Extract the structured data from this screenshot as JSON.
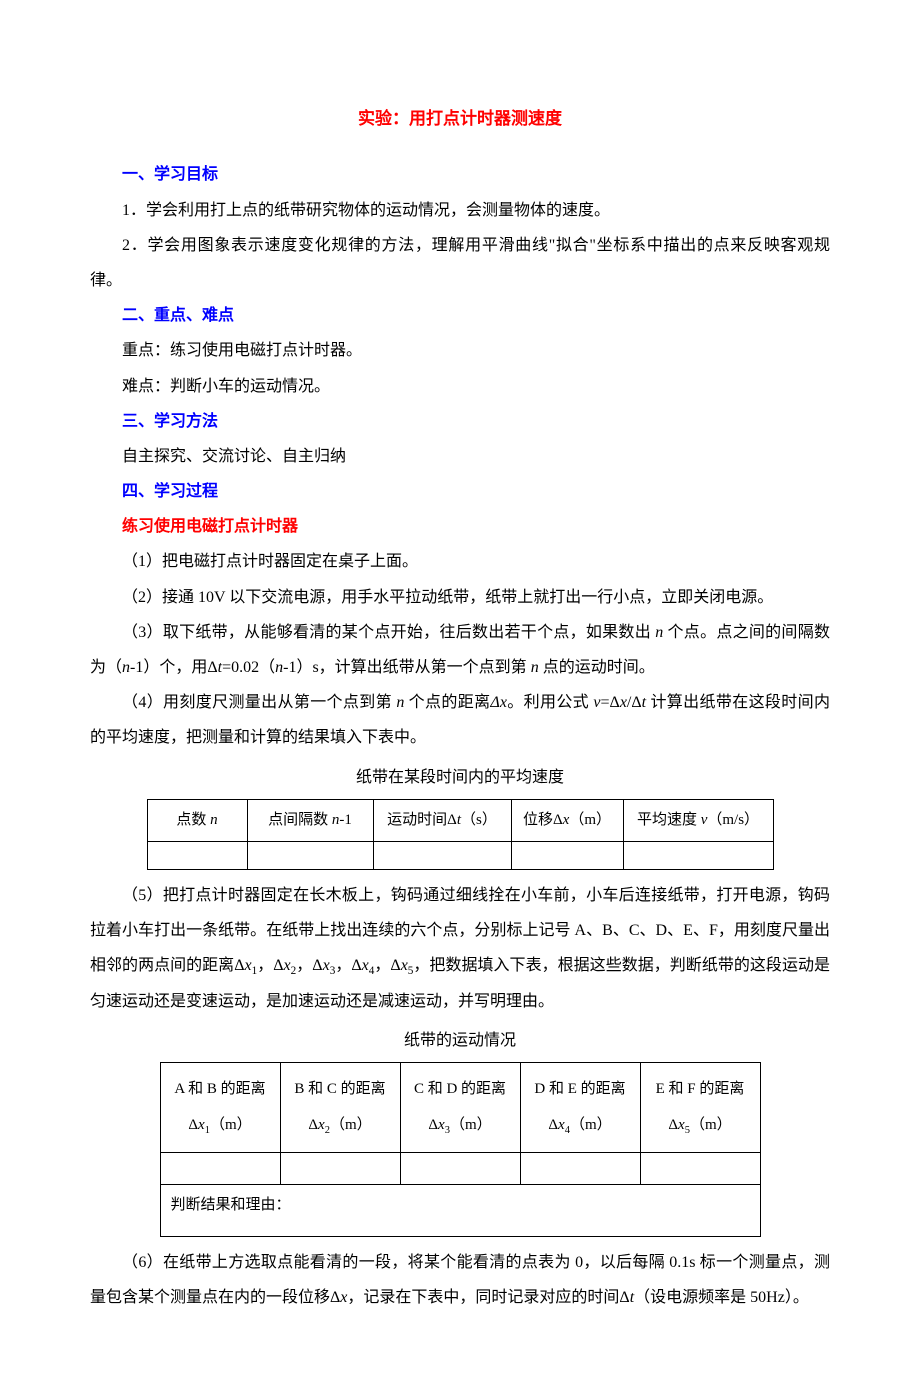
{
  "doc": {
    "title": "实验：用打点计时器测速度",
    "s1": {
      "heading": "一、学习目标",
      "p1": "1．学会利用打上点的纸带研究物体的运动情况，会测量物体的速度。",
      "p2": "2．学会用图象表示速度变化规律的方法，理解用平滑曲线\"拟合\"坐标系中描出的点来反映客观规律。"
    },
    "s2": {
      "heading": "二、重点、难点",
      "p1": "重点：练习使用电磁打点计时器。",
      "p2": "难点：判断小车的运动情况。"
    },
    "s3": {
      "heading": "三、学习方法",
      "p1": "自主探究、交流讨论、自主归纳"
    },
    "s4": {
      "heading": "四、学习过程",
      "sub1": "练习使用电磁打点计时器",
      "step1": "（1）把电磁打点计时器固定在桌子上面。",
      "step2": "（2）接通 10V 以下交流电源，用手水平拉动纸带，纸带上就打出一行小点，立即关闭电源。",
      "step3_a": "（3）取下纸带，从能够看清的某个点开始，往后数出若干个点，如果数出 ",
      "step3_b": " 个点。点之间的间隔数为（",
      "step3_c": "-1）个，用Δ",
      "step3_d": "=0.02（",
      "step3_e": "-1）s，计算出纸带从第一个点到第 ",
      "step3_f": " 点的运动时间。",
      "step4_a": "（4）用刻度尺测量出从第一个点到第 ",
      "step4_b": " 个点的距离",
      "step4_c": "。利用公式 ",
      "step4_d": "=Δ",
      "step4_e": "/Δ",
      "step4_f": " 计算出纸带在这段时间内的平均速度，把测量和计算的结果填入下表中。",
      "step5_a": "（5）把打点计时器固定在长木板上，钩码通过细线拴在小车前，小车后连接纸带，打开电源，钩码拉着小车打出一条纸带。在纸带上找出连续的六个点，分别标上记号 A、B、C、D、E、F，用刻度尺量出相邻的两点间的距离Δ",
      "step5_b": "，Δ",
      "step5_c": "，Δ",
      "step5_d": "，Δ",
      "step5_e": "，Δ",
      "step5_f": "，把数据填入下表，根据这些数据，判断纸带的这段运动是匀速运动还是变速运动，是加速运动还是减速运动，并写明理由。",
      "step6_a": "（6）在纸带上方选取点能看清的一段，将某个能看清的点表为 0，以后每隔 0.1s 标一个测量点，测量包含某个测量点在内的一段位移Δ",
      "step6_b": "，记录在下表中，同时记录对应的时间Δ",
      "step6_c": "（设电源频率是 50Hz）。"
    },
    "table1": {
      "caption": "纸带在某段时间内的平均速度",
      "h1_a": "点数 ",
      "h2_a": "点间隔数 ",
      "h2_b": "-1",
      "h3_a": "运动时间Δ",
      "h3_b": "（s）",
      "h4_a": "位移Δ",
      "h4_b": "（m）",
      "h5_a": "平均速度 ",
      "h5_b": "（m/s）"
    },
    "table2": {
      "caption": "纸带的运动情况",
      "h1_a": "A 和 B 的距离",
      "h1_b": "（m）",
      "h2_a": "B 和 C 的距离",
      "h2_b": "（m）",
      "h3_a": "C 和 D 的距离",
      "h3_b": "（m）",
      "h4_a": "D 和 E 的距离",
      "h4_b": "（m）",
      "h5_a": "E 和 F 的距离",
      "h5_b": "（m）",
      "result": "判断结果和理由："
    },
    "vars": {
      "n": "n",
      "t": "t",
      "x": "x",
      "v": "v",
      "Dx": "Δx",
      "x1": "x",
      "s1": "1",
      "x2": "x",
      "s2": "2",
      "x3": "x",
      "s3": "3",
      "x4": "x",
      "s4": "4",
      "x5": "x",
      "s5": "5"
    },
    "colors": {
      "title": "#ff0000",
      "section": "#0000ff",
      "subsection": "#ff0000",
      "body": "#000000",
      "background": "#ffffff",
      "border": "#000000"
    }
  }
}
